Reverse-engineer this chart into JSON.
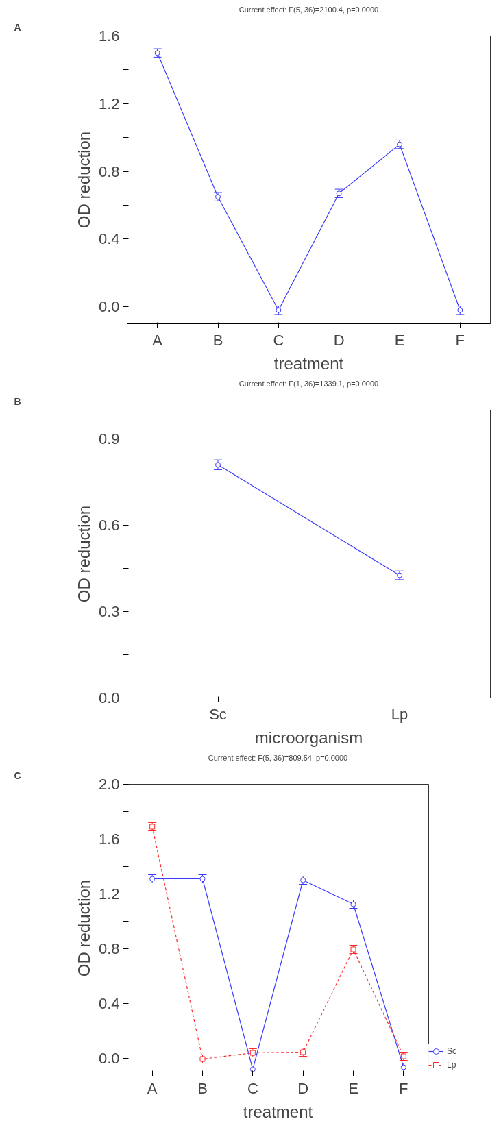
{
  "chart_data": [
    {
      "type": "line",
      "title": "Current effect: F(5, 36)=2100.4, p=0.0000",
      "xlabel": "treatment",
      "ylabel": "OD reduction",
      "annotations": [
        "A"
      ],
      "categories": [
        "A",
        "B",
        "C",
        "D",
        "E",
        "F"
      ],
      "series": [
        {
          "color": "#3a3aff",
          "values": [
            1.5,
            0.65,
            -0.02,
            0.67,
            0.96,
            -0.02
          ],
          "errors": [
            0.025,
            0.025,
            0.025,
            0.025,
            0.025,
            0.025
          ],
          "marker": "circle",
          "line_style": "solid"
        }
      ],
      "ylim": [
        -0.1,
        1.6
      ],
      "yticks": [
        {
          "value": 0.0,
          "label": "0.0"
        },
        {
          "value": 0.2,
          "label": null
        },
        {
          "value": 0.4,
          "label": "0.4"
        },
        {
          "value": 0.6,
          "label": null
        },
        {
          "value": 0.8,
          "label": "0.8"
        },
        {
          "value": 1.0,
          "label": null
        },
        {
          "value": 1.2,
          "label": "1.2"
        },
        {
          "value": 1.4,
          "label": null
        },
        {
          "value": 1.6,
          "label": "1.6"
        }
      ],
      "grid": false,
      "legend": false
    },
    {
      "type": "line",
      "title": "Current effect: F(1, 36)=1339.1, p=0.0000",
      "xlabel": "microorganism",
      "ylabel": "OD reduction",
      "annotations": [
        "B"
      ],
      "categories": [
        "Sc",
        "Lp"
      ],
      "series": [
        {
          "color": "#3a3aff",
          "values": [
            0.81,
            0.426
          ],
          "errors": [
            0.017,
            0.015
          ],
          "marker": "circle",
          "line_style": "solid"
        }
      ],
      "ylim": [
        0.0,
        1.0
      ],
      "yticks": [
        {
          "value": 0.0,
          "label": "0.0"
        },
        {
          "value": 0.15,
          "label": null
        },
        {
          "value": 0.3,
          "label": "0.3"
        },
        {
          "value": 0.45,
          "label": null
        },
        {
          "value": 0.6,
          "label": "0.6"
        },
        {
          "value": 0.75,
          "label": null
        },
        {
          "value": 0.9,
          "label": "0.9"
        }
      ],
      "grid": false,
      "legend": false
    },
    {
      "type": "line",
      "title": "Current effect: F(5, 36)=809.54, p=0.0000",
      "xlabel": "treatment",
      "ylabel": "OD reduction",
      "annotations": [
        "C"
      ],
      "categories": [
        "A",
        "B",
        "C",
        "D",
        "E",
        "F"
      ],
      "series": [
        {
          "name": "Sc",
          "color": "#3a3aff",
          "values": [
            1.31,
            1.31,
            -0.08,
            1.3,
            1.125,
            -0.065
          ],
          "errors": [
            0.03,
            0.03,
            null,
            0.03,
            0.03,
            [
              -0.085,
              -0.035
            ]
          ],
          "marker": "circle",
          "line_style": "solid"
        },
        {
          "name": "Lp",
          "color": "#ff2a2a",
          "values": [
            1.69,
            -0.005,
            0.04,
            0.045,
            0.795,
            0.015
          ],
          "errors": [
            0.03,
            0.03,
            0.03,
            0.03,
            0.03,
            0.03
          ],
          "marker": "square",
          "line_style": "dashed"
        }
      ],
      "ylim": [
        -0.1,
        2.0
      ],
      "yticks": [
        {
          "value": 0.0,
          "label": "0.0"
        },
        {
          "value": 0.2,
          "label": null
        },
        {
          "value": 0.4,
          "label": "0.4"
        },
        {
          "value": 0.6,
          "label": null
        },
        {
          "value": 0.8,
          "label": "0.8"
        },
        {
          "value": 1.0,
          "label": null
        },
        {
          "value": 1.2,
          "label": "1.2"
        },
        {
          "value": 1.4,
          "label": null
        },
        {
          "value": 1.6,
          "label": "1.6"
        },
        {
          "value": 1.8,
          "label": null
        },
        {
          "value": 2.0,
          "label": "2.0"
        }
      ],
      "grid": false,
      "legend": "bottom right"
    }
  ]
}
